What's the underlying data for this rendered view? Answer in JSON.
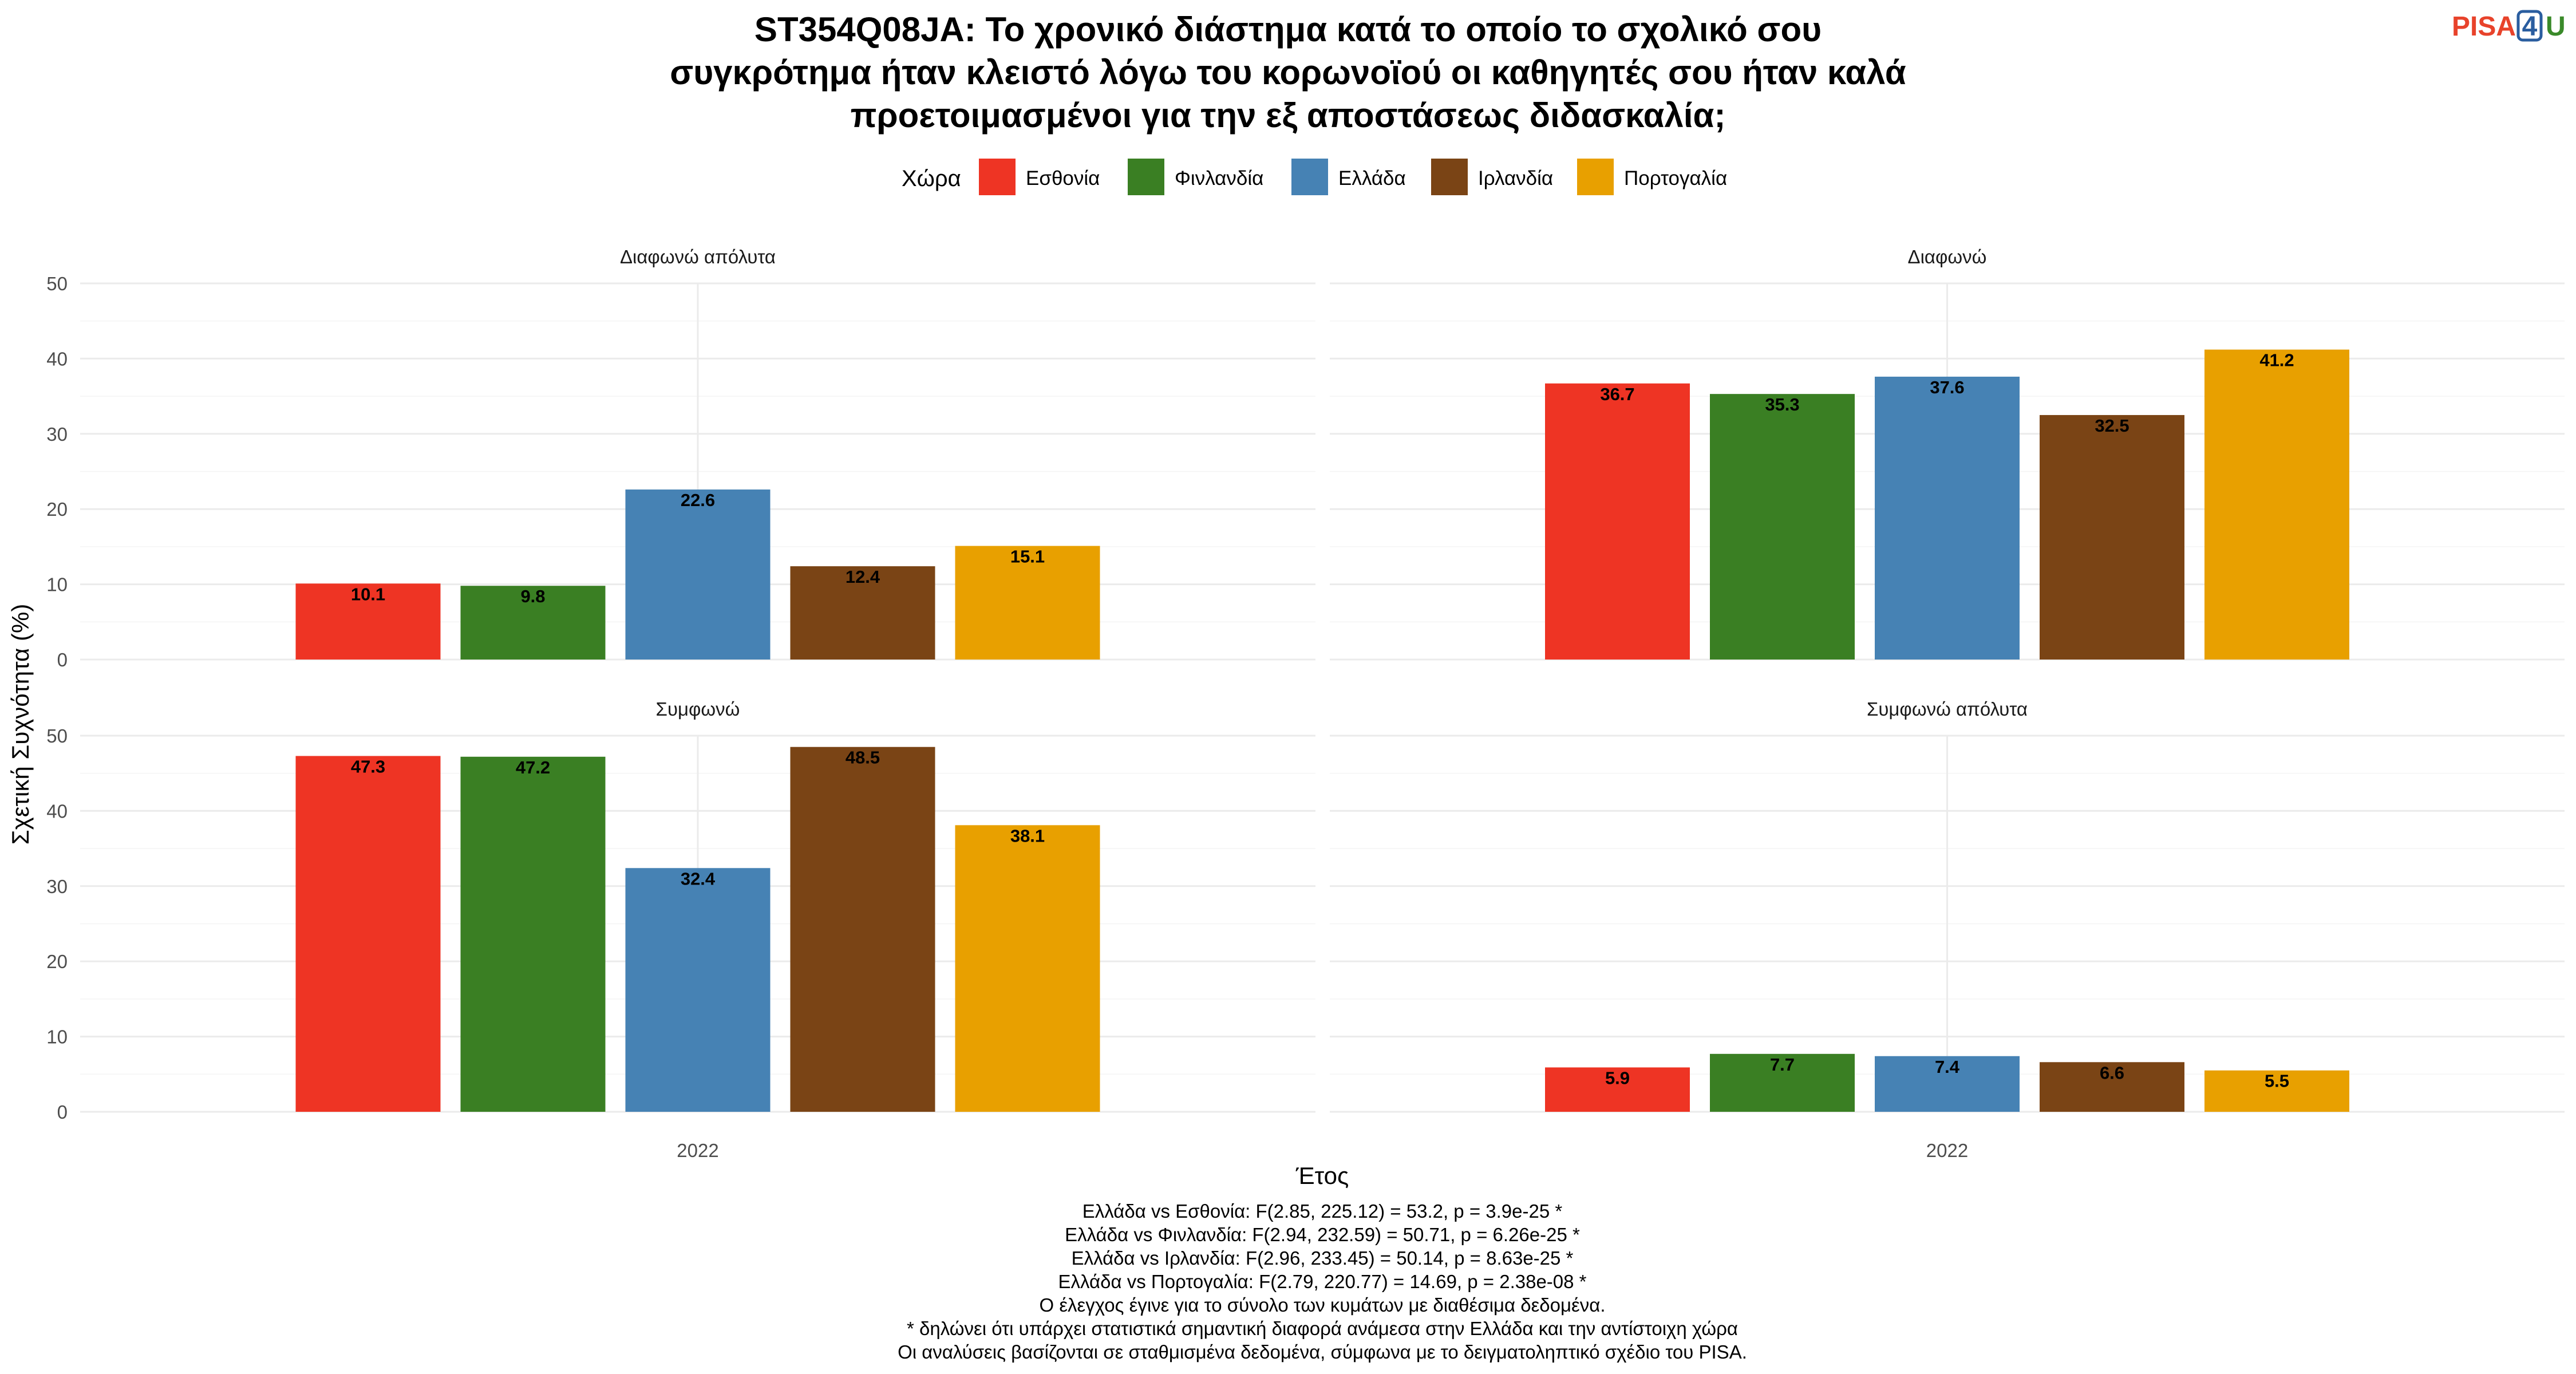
{
  "logo": {
    "prefix": "PISA",
    "digit": "4",
    "suffix": "U",
    "prefix_color": "#e8432b",
    "digit_color": "#2a5d9f",
    "suffix_color": "#3a8a2a"
  },
  "chart_data": {
    "type": "bar",
    "title_lines": [
      "ST354Q08JA: Το χρονικό διάστημα κατά το οποίο το σχολικό σου",
      "συγκρότημα ήταν κλειστό λόγω του κορωνοϊού οι καθηγητές σου ήταν καλά",
      "προετοιμασμένοι για την εξ αποστάσεως διδασκαλία;"
    ],
    "legend_title": "Χώρα",
    "legend_placement": "top",
    "xlabel": "Έτος",
    "ylabel": "Σχετική Συχνότητα (%)",
    "ylim": [
      0,
      50
    ],
    "yticks": [
      0,
      10,
      20,
      30,
      40,
      50
    ],
    "grid": true,
    "categories": [
      "2022"
    ],
    "series": [
      {
        "name": "Εσθονία",
        "color": "#ee3424"
      },
      {
        "name": "Φινλανδία",
        "color": "#3a7f23"
      },
      {
        "name": "Ελλάδα",
        "color": "#4682b4"
      },
      {
        "name": "Ιρλανδία",
        "color": "#7a4415"
      },
      {
        "name": "Πορτογαλία",
        "color": "#e8a000"
      }
    ],
    "panels": [
      {
        "title": "Διαφωνώ απόλυτα",
        "values": [
          10.1,
          9.8,
          22.6,
          12.4,
          15.1
        ],
        "labels": [
          "10.1",
          "9.8",
          "22.6",
          "12.4",
          "15.1"
        ]
      },
      {
        "title": "Διαφωνώ",
        "values": [
          36.7,
          35.3,
          37.6,
          32.5,
          41.2
        ],
        "labels": [
          "36.7",
          "35.3",
          "37.6",
          "32.5",
          "41.2"
        ]
      },
      {
        "title": "Συμφωνώ",
        "values": [
          47.3,
          47.2,
          32.4,
          48.5,
          38.1
        ],
        "labels": [
          "47.3",
          "47.2",
          "32.4",
          "48.5",
          "38.1"
        ]
      },
      {
        "title": "Συμφωνώ απόλυτα",
        "values": [
          5.9,
          7.7,
          7.4,
          6.6,
          5.5
        ],
        "labels": [
          "5.9",
          "7.7",
          "7.4",
          "6.6",
          "5.5"
        ]
      }
    ],
    "caption_lines": [
      "Ελλάδα vs Εσθονία: F(2.85, 225.12) = 53.2, p = 3.9e-25 *",
      "Ελλάδα vs Φινλανδία: F(2.94, 232.59) = 50.71, p = 6.26e-25 *",
      "Ελλάδα vs Ιρλανδία: F(2.96, 233.45) = 50.14, p = 8.63e-25 *",
      "Ελλάδα vs Πορτογαλία: F(2.79, 220.77) = 14.69, p = 2.38e-08 *",
      "Ο έλεγχος έγινε για το σύνολο των κυμάτων με διαθέσιμα δεδομένα.",
      "* δηλώνει ότι υπάρχει στατιστικά σημαντική διαφορά ανάμεσα στην Ελλάδα και την αντίστοιχη χώρα",
      "Οι αναλύσεις βασίζονται σε σταθμισμένα δεδομένα, σύμφωνα με το δειγματοληπτικό σχέδιο του PISA."
    ]
  }
}
